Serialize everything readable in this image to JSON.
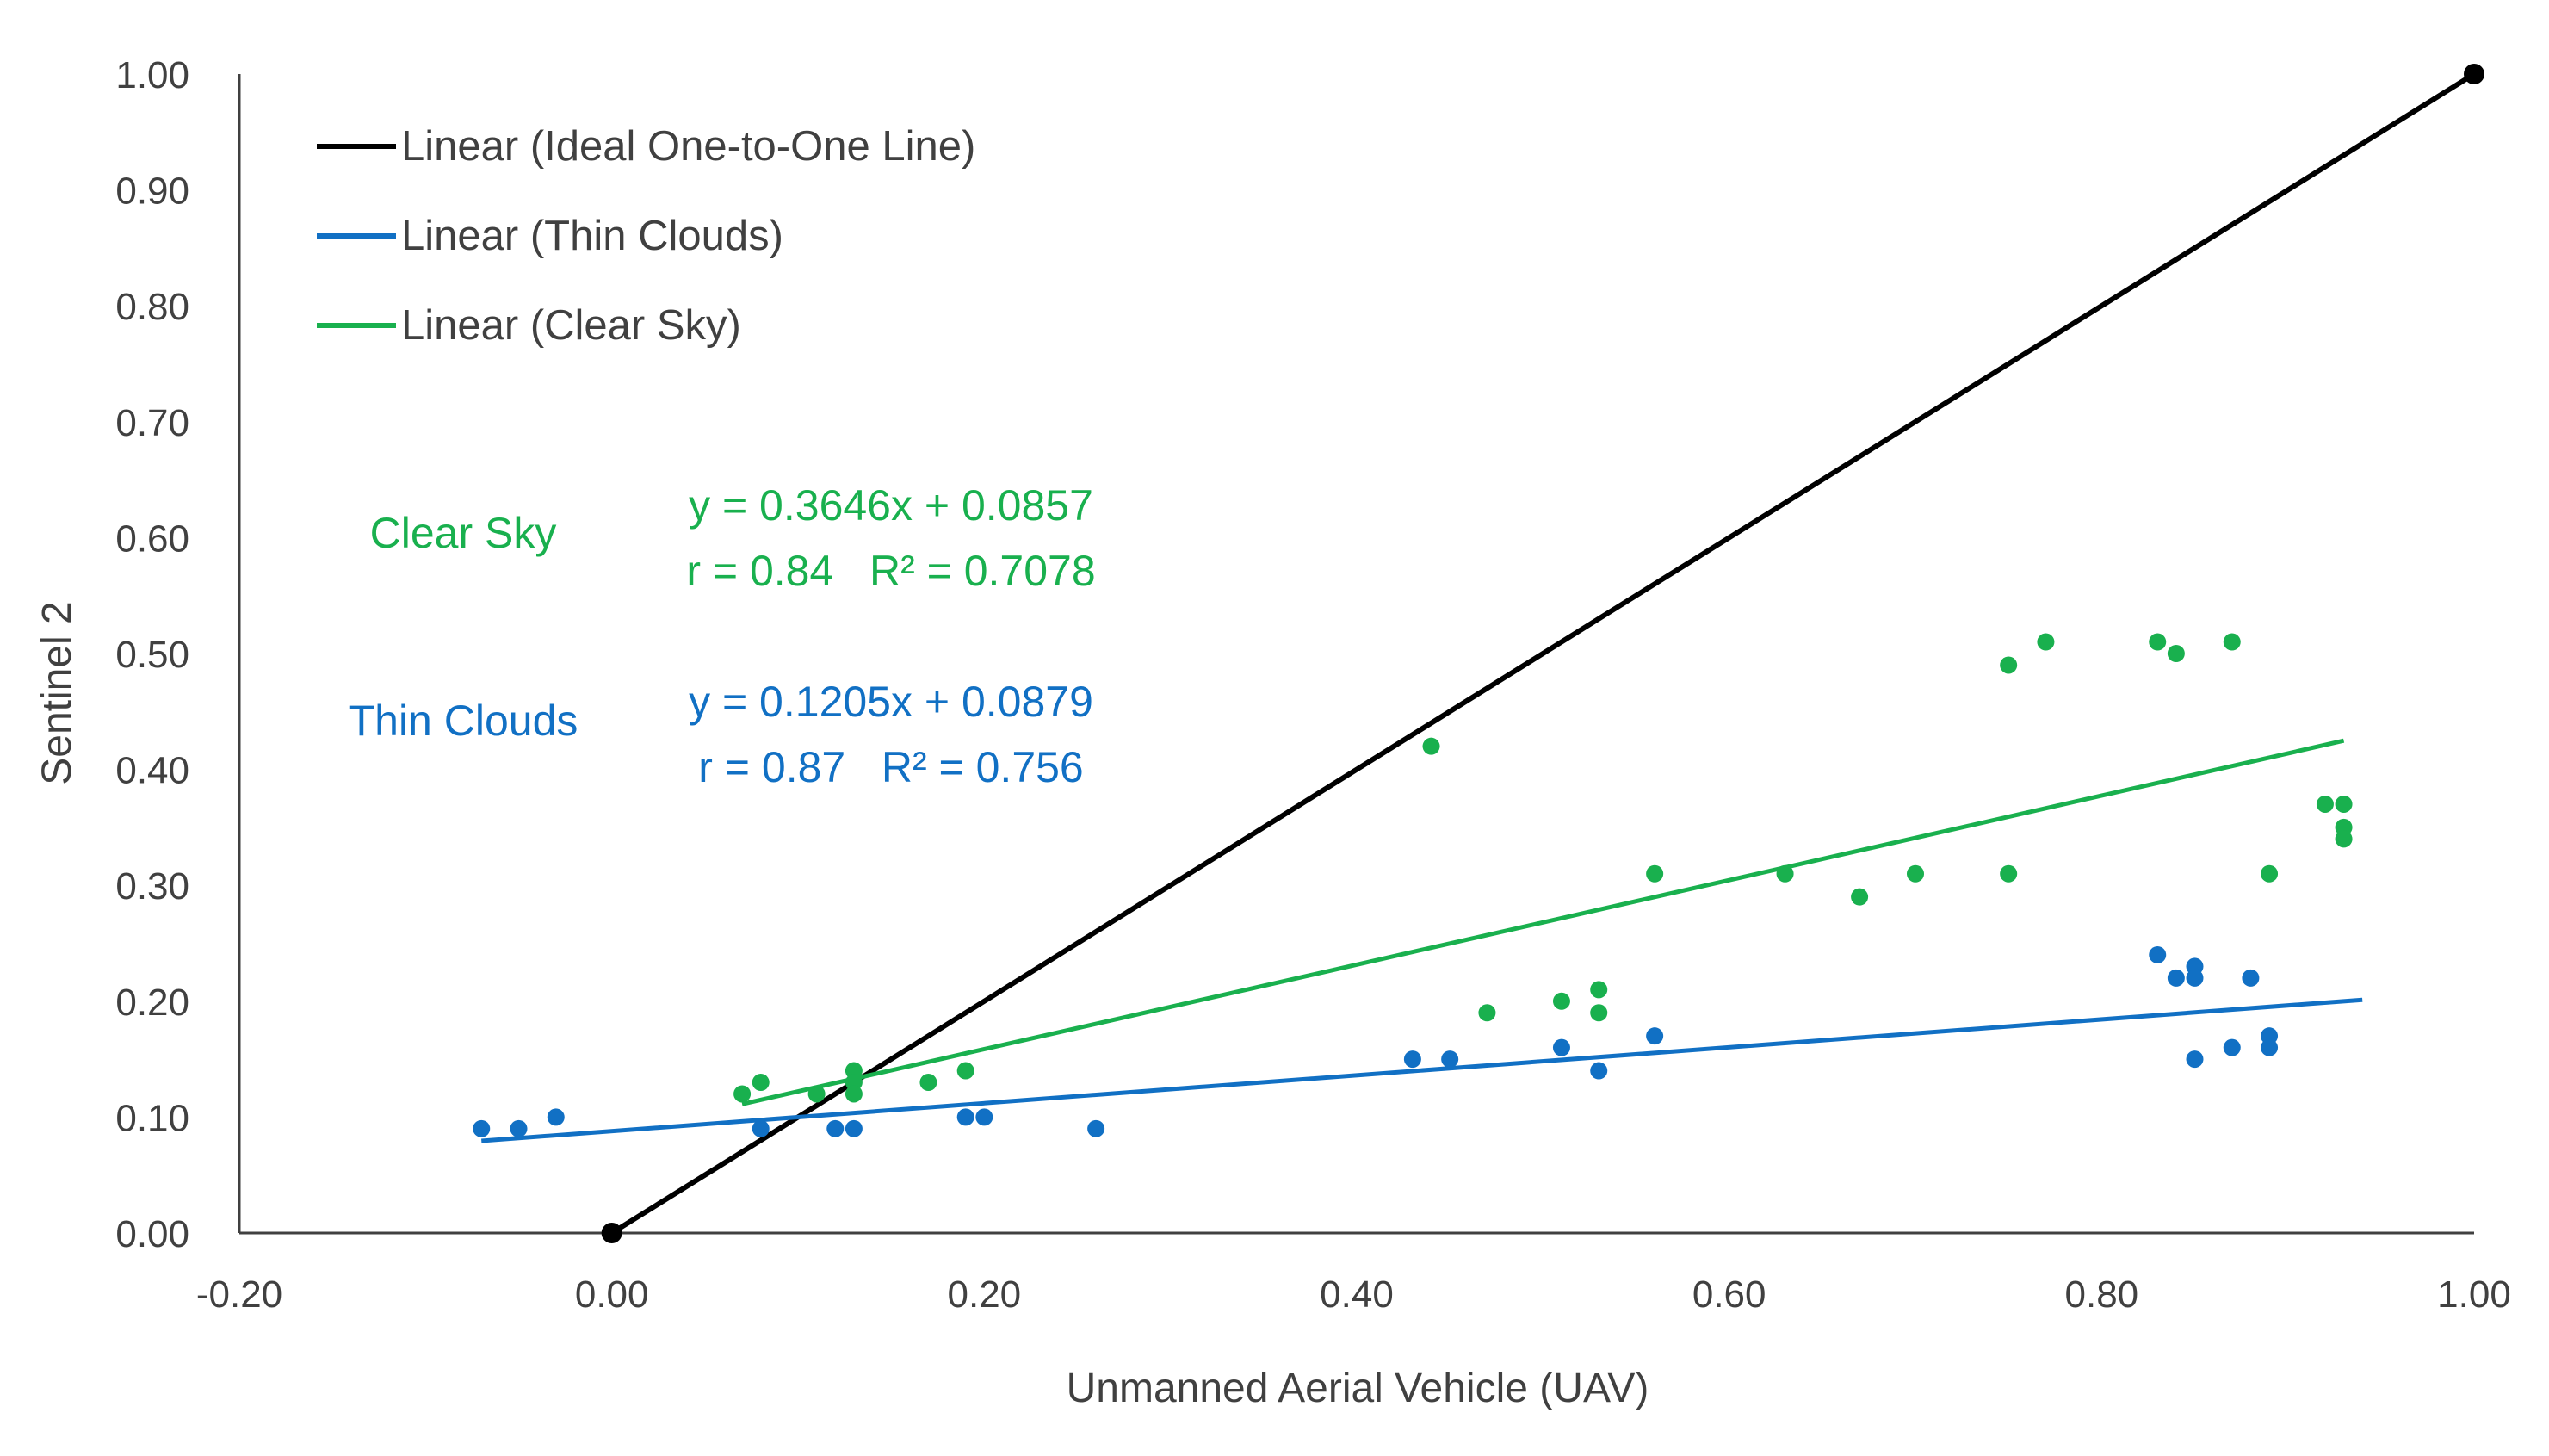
{
  "colors": {
    "ideal": "#000000",
    "thin": "#1170C4",
    "clear": "#19B04E",
    "axis": "#404040"
  },
  "chart_data": {
    "type": "scatter",
    "title": "",
    "xlabel": "Unmanned Aerial Vehicle (UAV)",
    "ylabel": "Sentinel 2",
    "xlim": [
      -0.2,
      1.0
    ],
    "ylim": [
      0.0,
      1.0
    ],
    "x_ticks": [
      "-0.20",
      "0.00",
      "0.20",
      "0.40",
      "0.60",
      "0.80",
      "1.00"
    ],
    "x_tick_values": [
      -0.2,
      0.0,
      0.2,
      0.4,
      0.6,
      0.8,
      1.0
    ],
    "y_ticks": [
      "0.00",
      "0.10",
      "0.20",
      "0.30",
      "0.40",
      "0.50",
      "0.60",
      "0.70",
      "0.80",
      "0.90",
      "1.00"
    ],
    "y_tick_values": [
      0.0,
      0.1,
      0.2,
      0.3,
      0.4,
      0.5,
      0.6,
      0.7,
      0.8,
      0.9,
      1.0
    ],
    "grid": false,
    "legend_position": "top-left",
    "legend": [
      {
        "label": "Linear (Ideal One-to-One Line)",
        "series": "ideal"
      },
      {
        "label": "Linear (Thin Clouds)",
        "series": "thin"
      },
      {
        "label": "Linear (Clear Sky)",
        "series": "clear"
      }
    ],
    "series": [
      {
        "name": "Ideal One-to-One",
        "key": "ideal",
        "points": [
          [
            0.0,
            0.0
          ],
          [
            1.0,
            1.0
          ]
        ],
        "trendline": {
          "slope": 1.0,
          "intercept": 0.0,
          "x_range": [
            0.0,
            1.0
          ]
        }
      },
      {
        "name": "Thin Clouds",
        "key": "thin",
        "points": [
          [
            -0.07,
            0.09
          ],
          [
            -0.05,
            0.09
          ],
          [
            -0.03,
            0.1
          ],
          [
            0.08,
            0.09
          ],
          [
            0.12,
            0.09
          ],
          [
            0.13,
            0.09
          ],
          [
            0.19,
            0.1
          ],
          [
            0.2,
            0.1
          ],
          [
            0.26,
            0.09
          ],
          [
            0.43,
            0.15
          ],
          [
            0.45,
            0.15
          ],
          [
            0.51,
            0.16
          ],
          [
            0.53,
            0.14
          ],
          [
            0.56,
            0.17
          ],
          [
            0.83,
            0.24
          ],
          [
            0.84,
            0.22
          ],
          [
            0.85,
            0.23
          ],
          [
            0.85,
            0.22
          ],
          [
            0.85,
            0.15
          ],
          [
            0.87,
            0.16
          ],
          [
            0.88,
            0.22
          ],
          [
            0.89,
            0.17
          ],
          [
            0.89,
            0.16
          ]
        ],
        "trendline": {
          "slope": 0.1205,
          "intercept": 0.0879,
          "x_range": [
            -0.07,
            0.94
          ]
        }
      },
      {
        "name": "Clear Sky",
        "key": "clear",
        "points": [
          [
            0.07,
            0.12
          ],
          [
            0.08,
            0.13
          ],
          [
            0.11,
            0.12
          ],
          [
            0.13,
            0.14
          ],
          [
            0.13,
            0.13
          ],
          [
            0.13,
            0.12
          ],
          [
            0.17,
            0.13
          ],
          [
            0.19,
            0.14
          ],
          [
            0.44,
            0.42
          ],
          [
            0.47,
            0.19
          ],
          [
            0.51,
            0.2
          ],
          [
            0.53,
            0.21
          ],
          [
            0.53,
            0.19
          ],
          [
            0.56,
            0.31
          ],
          [
            0.63,
            0.31
          ],
          [
            0.67,
            0.29
          ],
          [
            0.7,
            0.31
          ],
          [
            0.75,
            0.31
          ],
          [
            0.75,
            0.49
          ],
          [
            0.77,
            0.51
          ],
          [
            0.83,
            0.51
          ],
          [
            0.84,
            0.5
          ],
          [
            0.87,
            0.51
          ],
          [
            0.89,
            0.31
          ],
          [
            0.92,
            0.37
          ],
          [
            0.93,
            0.37
          ],
          [
            0.93,
            0.35
          ],
          [
            0.93,
            0.34
          ]
        ],
        "trendline": {
          "slope": 0.3646,
          "intercept": 0.0857,
          "x_range": [
            0.07,
            0.93
          ]
        }
      }
    ],
    "annotations": [
      {
        "key": "clear",
        "label": "Clear Sky",
        "equation": "y = 0.3646x + 0.0857",
        "stats": "r = 0.84   R² = 0.7078"
      },
      {
        "key": "thin",
        "label": "Thin Clouds",
        "equation": "y = 0.1205x + 0.0879",
        "stats": "r = 0.87   R² = 0.756"
      }
    ]
  }
}
